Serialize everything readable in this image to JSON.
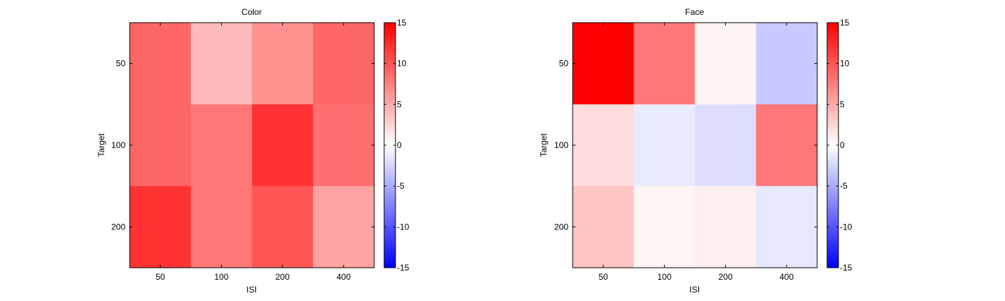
{
  "chart_data": [
    {
      "type": "heatmap",
      "title": "Color",
      "xlabel": "ISI",
      "ylabel": "Target",
      "x": [
        "50",
        "100",
        "200",
        "400"
      ],
      "y": [
        "50",
        "100",
        "200"
      ],
      "values": [
        [
          9,
          4,
          6.5,
          9
        ],
        [
          9,
          8,
          12,
          8.5
        ],
        [
          12,
          8,
          10,
          5.5
        ]
      ],
      "colorbar": {
        "range": [
          -15,
          15
        ],
        "ticks": [
          "15",
          "10",
          "5",
          "0",
          "-5",
          "-10",
          "-15"
        ]
      },
      "colormap": {
        "low": "#0000ff",
        "mid": "#ffffff",
        "high": "#ff0000"
      },
      "grid": false
    },
    {
      "type": "heatmap",
      "title": "Face",
      "xlabel": "ISI",
      "ylabel": "Target",
      "x": [
        "50",
        "100",
        "200",
        "400"
      ],
      "y": [
        "50",
        "100",
        "200"
      ],
      "values": [
        [
          15,
          8,
          0.7,
          -3.2
        ],
        [
          2,
          -1.2,
          -2,
          8
        ],
        [
          3.5,
          0.6,
          1,
          -1.4
        ]
      ],
      "colorbar": {
        "range": [
          -15,
          15
        ],
        "ticks": [
          "15",
          "10",
          "5",
          "0",
          "-5",
          "-10",
          "-15"
        ]
      },
      "colormap": {
        "low": "#0000ff",
        "mid": "#ffffff",
        "high": "#ff0000"
      },
      "grid": false
    }
  ]
}
